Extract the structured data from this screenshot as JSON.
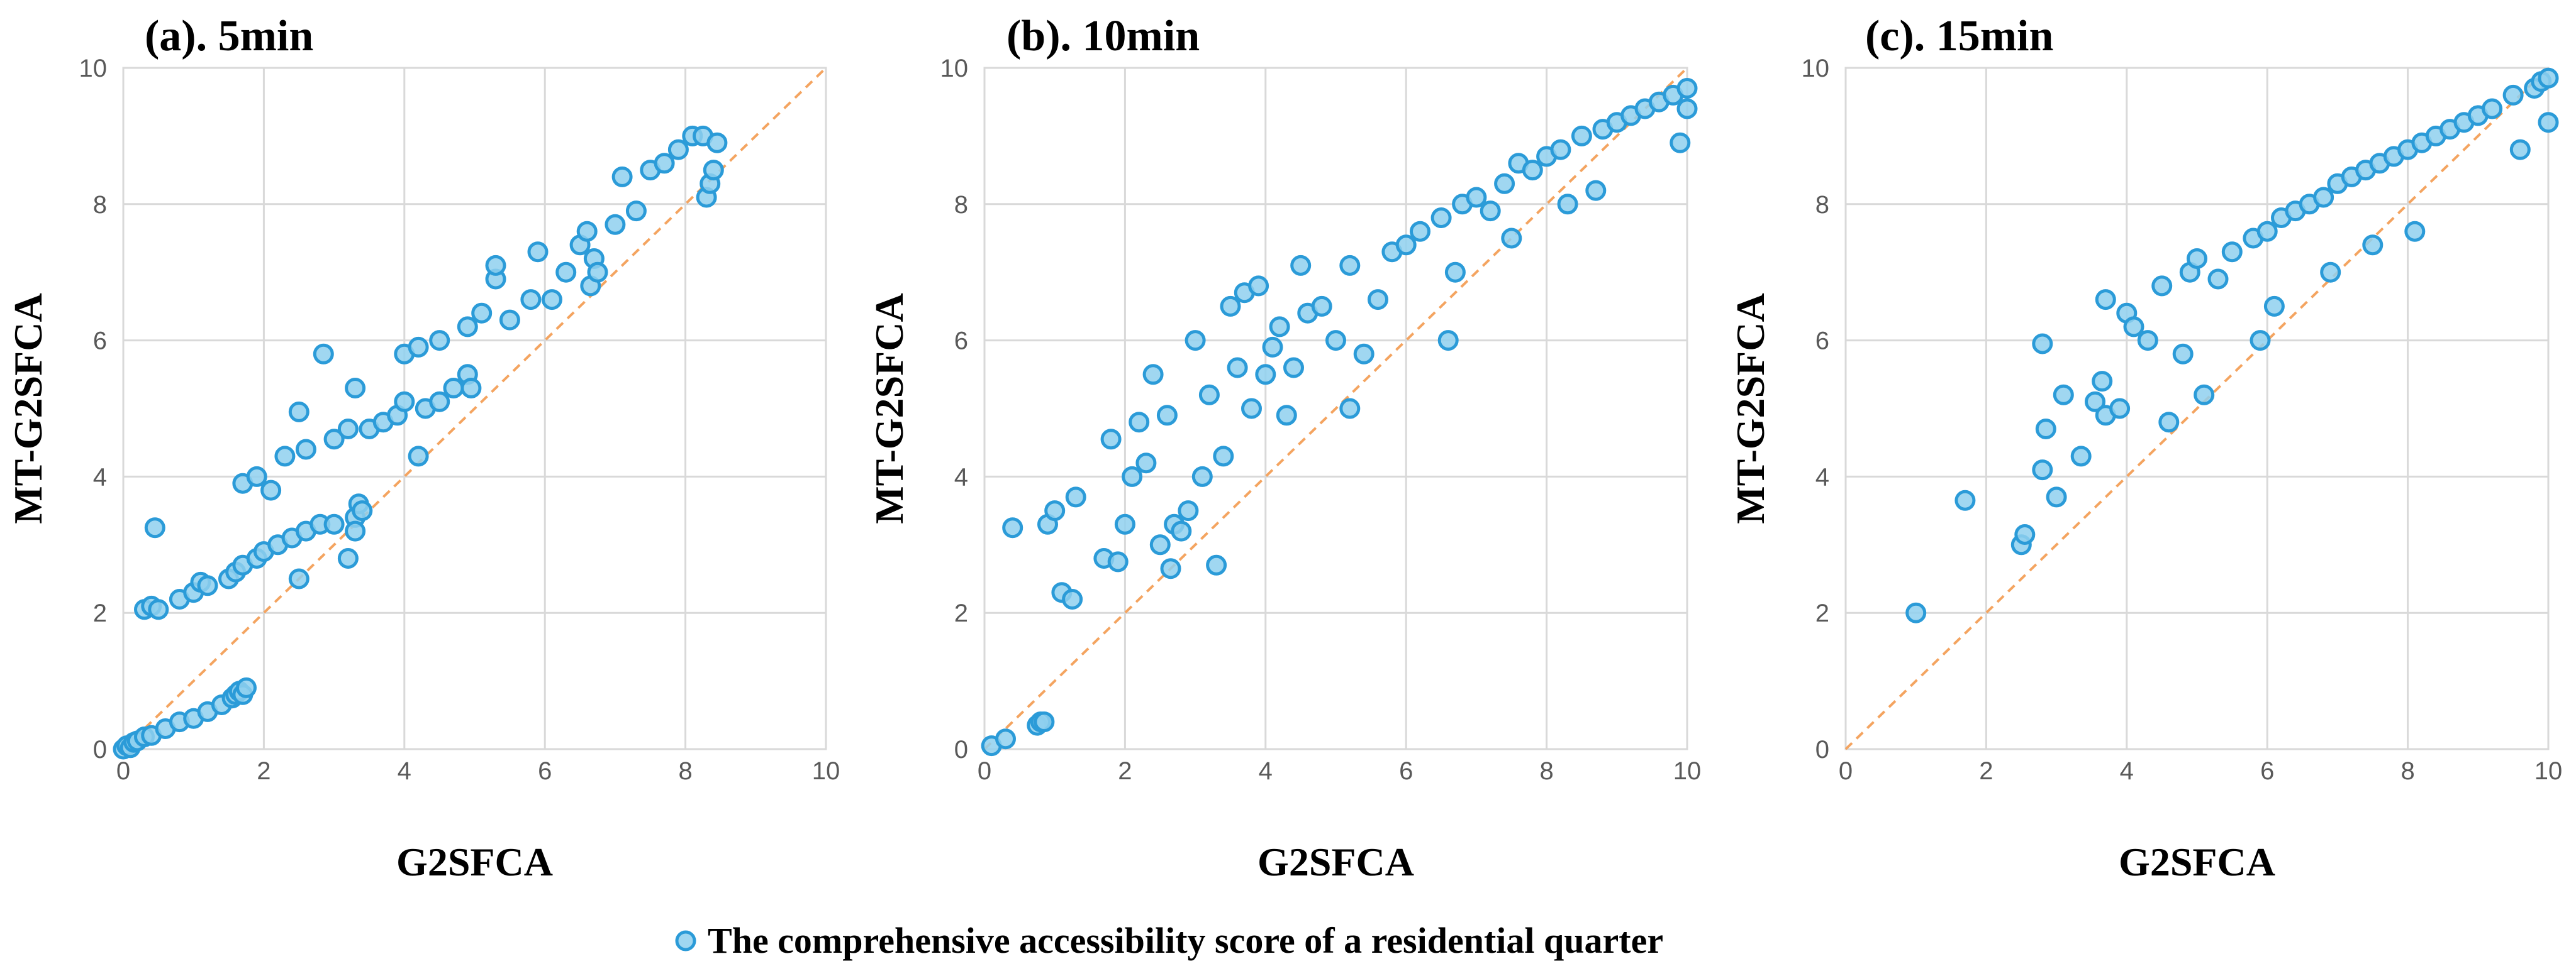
{
  "chart_data": [
    {
      "type": "scatter",
      "title": "(a). 5min",
      "xlabel": "G2SFCA",
      "ylabel": "MT-G2SFCA",
      "xlim": [
        0,
        10
      ],
      "ylim": [
        0,
        10
      ],
      "xticks": [
        "0",
        "2",
        "4",
        "6",
        "8",
        "10"
      ],
      "yticks": [
        "0",
        "2",
        "4",
        "6",
        "8",
        "10"
      ],
      "grid": true,
      "reference_line": "y = x",
      "series": [
        {
          "name": "The comprehensive accessibility score of a residential quarter",
          "points": [
            [
              0.0,
              0.0
            ],
            [
              0.05,
              0.05
            ],
            [
              0.1,
              0.02
            ],
            [
              0.15,
              0.1
            ],
            [
              0.2,
              0.12
            ],
            [
              0.3,
              0.18
            ],
            [
              0.4,
              0.2
            ],
            [
              0.6,
              0.3
            ],
            [
              0.8,
              0.4
            ],
            [
              1.0,
              0.45
            ],
            [
              1.2,
              0.55
            ],
            [
              1.4,
              0.65
            ],
            [
              1.55,
              0.75
            ],
            [
              1.6,
              0.8
            ],
            [
              1.65,
              0.85
            ],
            [
              1.7,
              0.8
            ],
            [
              1.75,
              0.9
            ],
            [
              0.3,
              2.05
            ],
            [
              0.4,
              2.1
            ],
            [
              0.5,
              2.05
            ],
            [
              0.45,
              3.25
            ],
            [
              0.8,
              2.2
            ],
            [
              1.0,
              2.3
            ],
            [
              1.1,
              2.45
            ],
            [
              1.2,
              2.4
            ],
            [
              1.5,
              2.5
            ],
            [
              1.6,
              2.6
            ],
            [
              1.7,
              2.7
            ],
            [
              1.9,
              2.8
            ],
            [
              2.0,
              2.9
            ],
            [
              2.2,
              3.0
            ],
            [
              2.4,
              3.1
            ],
            [
              2.5,
              2.5
            ],
            [
              2.6,
              3.2
            ],
            [
              2.8,
              3.3
            ],
            [
              3.0,
              3.3
            ],
            [
              3.2,
              2.8
            ],
            [
              3.3,
              3.4
            ],
            [
              3.35,
              3.6
            ],
            [
              3.3,
              3.2
            ],
            [
              3.4,
              3.5
            ],
            [
              1.7,
              3.9
            ],
            [
              1.9,
              4.0
            ],
            [
              2.1,
              3.8
            ],
            [
              2.3,
              4.3
            ],
            [
              2.5,
              4.95
            ],
            [
              2.6,
              4.4
            ],
            [
              2.85,
              5.8
            ],
            [
              3.0,
              4.55
            ],
            [
              3.2,
              4.7
            ],
            [
              3.3,
              5.3
            ],
            [
              3.5,
              4.7
            ],
            [
              3.7,
              4.8
            ],
            [
              3.9,
              4.9
            ],
            [
              4.0,
              5.1
            ],
            [
              4.2,
              4.3
            ],
            [
              4.3,
              5.0
            ],
            [
              4.5,
              5.1
            ],
            [
              4.7,
              5.3
            ],
            [
              4.9,
              5.5
            ],
            [
              4.95,
              5.3
            ],
            [
              4.0,
              5.8
            ],
            [
              4.2,
              5.9
            ],
            [
              4.5,
              6.0
            ],
            [
              4.9,
              6.2
            ],
            [
              5.1,
              6.4
            ],
            [
              5.3,
              6.9
            ],
            [
              5.3,
              7.1
            ],
            [
              5.5,
              6.3
            ],
            [
              5.8,
              6.6
            ],
            [
              5.9,
              7.3
            ],
            [
              6.1,
              6.6
            ],
            [
              6.3,
              7.0
            ],
            [
              6.5,
              7.4
            ],
            [
              6.6,
              7.6
            ],
            [
              6.65,
              6.8
            ],
            [
              6.7,
              7.2
            ],
            [
              6.75,
              7.0
            ],
            [
              7.0,
              7.7
            ],
            [
              7.1,
              8.4
            ],
            [
              7.3,
              7.9
            ],
            [
              7.5,
              8.5
            ],
            [
              7.7,
              8.6
            ],
            [
              7.9,
              8.8
            ],
            [
              8.1,
              9.0
            ],
            [
              8.25,
              9.0
            ],
            [
              8.3,
              8.1
            ],
            [
              8.35,
              8.3
            ],
            [
              8.4,
              8.5
            ],
            [
              8.45,
              8.9
            ]
          ]
        }
      ]
    },
    {
      "type": "scatter",
      "title": "(b). 10min",
      "xlabel": "G2SFCA",
      "ylabel": "MT-G2SFCA",
      "xlim": [
        0,
        10
      ],
      "ylim": [
        0,
        10
      ],
      "xticks": [
        "0",
        "2",
        "4",
        "6",
        "8",
        "10"
      ],
      "yticks": [
        "0",
        "2",
        "4",
        "6",
        "8",
        "10"
      ],
      "grid": true,
      "reference_line": "y = x",
      "series": [
        {
          "name": "The comprehensive accessibility score of a residential quarter",
          "points": [
            [
              0.1,
              0.05
            ],
            [
              0.3,
              0.15
            ],
            [
              0.75,
              0.35
            ],
            [
              0.8,
              0.4
            ],
            [
              0.85,
              0.4
            ],
            [
              0.4,
              3.25
            ],
            [
              0.9,
              3.3
            ],
            [
              1.0,
              3.5
            ],
            [
              1.1,
              2.3
            ],
            [
              1.25,
              2.2
            ],
            [
              1.3,
              3.7
            ],
            [
              1.7,
              2.8
            ],
            [
              1.8,
              4.55
            ],
            [
              1.9,
              2.75
            ],
            [
              2.0,
              3.3
            ],
            [
              2.1,
              4.0
            ],
            [
              2.2,
              4.8
            ],
            [
              2.3,
              4.2
            ],
            [
              2.4,
              5.5
            ],
            [
              2.5,
              3.0
            ],
            [
              2.6,
              4.9
            ],
            [
              2.65,
              2.65
            ],
            [
              2.7,
              3.3
            ],
            [
              2.8,
              3.2
            ],
            [
              2.9,
              3.5
            ],
            [
              3.0,
              6.0
            ],
            [
              3.1,
              4.0
            ],
            [
              3.2,
              5.2
            ],
            [
              3.3,
              2.7
            ],
            [
              3.4,
              4.3
            ],
            [
              3.5,
              6.5
            ],
            [
              3.6,
              5.6
            ],
            [
              3.7,
              6.7
            ],
            [
              3.8,
              5.0
            ],
            [
              3.9,
              6.8
            ],
            [
              4.0,
              5.5
            ],
            [
              4.1,
              5.9
            ],
            [
              4.2,
              6.2
            ],
            [
              4.3,
              4.9
            ],
            [
              4.4,
              5.6
            ],
            [
              4.5,
              7.1
            ],
            [
              4.6,
              6.4
            ],
            [
              4.8,
              6.5
            ],
            [
              5.0,
              6.0
            ],
            [
              5.2,
              7.1
            ],
            [
              5.2,
              5.0
            ],
            [
              5.4,
              5.8
            ],
            [
              5.6,
              6.6
            ],
            [
              5.8,
              7.3
            ],
            [
              6.0,
              7.4
            ],
            [
              6.2,
              7.6
            ],
            [
              6.5,
              7.8
            ],
            [
              6.6,
              6.0
            ],
            [
              6.7,
              7.0
            ],
            [
              6.8,
              8.0
            ],
            [
              7.0,
              8.1
            ],
            [
              7.2,
              7.9
            ],
            [
              7.4,
              8.3
            ],
            [
              7.5,
              7.5
            ],
            [
              7.6,
              8.6
            ],
            [
              7.8,
              8.5
            ],
            [
              8.0,
              8.7
            ],
            [
              8.2,
              8.8
            ],
            [
              8.3,
              8.0
            ],
            [
              8.5,
              9.0
            ],
            [
              8.7,
              8.2
            ],
            [
              8.8,
              9.1
            ],
            [
              9.0,
              9.2
            ],
            [
              9.2,
              9.3
            ],
            [
              9.4,
              9.4
            ],
            [
              9.6,
              9.5
            ],
            [
              9.8,
              9.6
            ],
            [
              9.9,
              8.9
            ],
            [
              10.0,
              9.4
            ],
            [
              10.0,
              9.7
            ]
          ]
        }
      ]
    },
    {
      "type": "scatter",
      "title": "(c). 15min",
      "xlabel": "G2SFCA",
      "ylabel": "MT-G2SFCA",
      "xlim": [
        0,
        10
      ],
      "ylim": [
        0,
        10
      ],
      "xticks": [
        "0",
        "2",
        "4",
        "6",
        "8",
        "10"
      ],
      "yticks": [
        "0",
        "2",
        "4",
        "6",
        "8",
        "10"
      ],
      "grid": true,
      "reference_line": "y = x",
      "series": [
        {
          "name": "The comprehensive accessibility score of a residential quarter",
          "points": [
            [
              1.0,
              2.0
            ],
            [
              1.7,
              3.65
            ],
            [
              2.5,
              3.0
            ],
            [
              2.55,
              3.15
            ],
            [
              2.8,
              4.1
            ],
            [
              2.85,
              4.7
            ],
            [
              2.8,
              5.95
            ],
            [
              3.0,
              3.7
            ],
            [
              3.1,
              5.2
            ],
            [
              3.35,
              4.3
            ],
            [
              3.55,
              5.1
            ],
            [
              3.65,
              5.4
            ],
            [
              3.7,
              4.9
            ],
            [
              3.7,
              6.6
            ],
            [
              3.9,
              5.0
            ],
            [
              4.0,
              6.4
            ],
            [
              4.1,
              6.2
            ],
            [
              4.3,
              6.0
            ],
            [
              4.5,
              6.8
            ],
            [
              4.6,
              4.8
            ],
            [
              4.8,
              5.8
            ],
            [
              4.9,
              7.0
            ],
            [
              5.0,
              7.2
            ],
            [
              5.1,
              5.2
            ],
            [
              5.3,
              6.9
            ],
            [
              5.5,
              7.3
            ],
            [
              5.8,
              7.5
            ],
            [
              5.9,
              6.0
            ],
            [
              6.0,
              7.6
            ],
            [
              6.1,
              6.5
            ],
            [
              6.2,
              7.8
            ],
            [
              6.4,
              7.9
            ],
            [
              6.6,
              8.0
            ],
            [
              6.8,
              8.1
            ],
            [
              6.9,
              7.0
            ],
            [
              7.0,
              8.3
            ],
            [
              7.2,
              8.4
            ],
            [
              7.4,
              8.5
            ],
            [
              7.5,
              7.4
            ],
            [
              7.6,
              8.6
            ],
            [
              7.8,
              8.7
            ],
            [
              8.0,
              8.8
            ],
            [
              8.1,
              7.6
            ],
            [
              8.2,
              8.9
            ],
            [
              8.4,
              9.0
            ],
            [
              8.6,
              9.1
            ],
            [
              8.8,
              9.2
            ],
            [
              9.0,
              9.3
            ],
            [
              9.2,
              9.4
            ],
            [
              9.5,
              9.6
            ],
            [
              9.6,
              8.8
            ],
            [
              9.8,
              9.7
            ],
            [
              9.9,
              9.8
            ],
            [
              10.0,
              9.2
            ],
            [
              10.0,
              9.85
            ]
          ]
        }
      ]
    }
  ],
  "legend": {
    "label": "The comprehensive accessibility score of a residential quarter",
    "position": "bottom-center"
  },
  "colors": {
    "marker_fill": "#8fd0ef",
    "marker_edge": "#2b9bd8",
    "reference_line": "#f4a460",
    "grid": "#d9d9d9",
    "tick_text": "#595959"
  }
}
